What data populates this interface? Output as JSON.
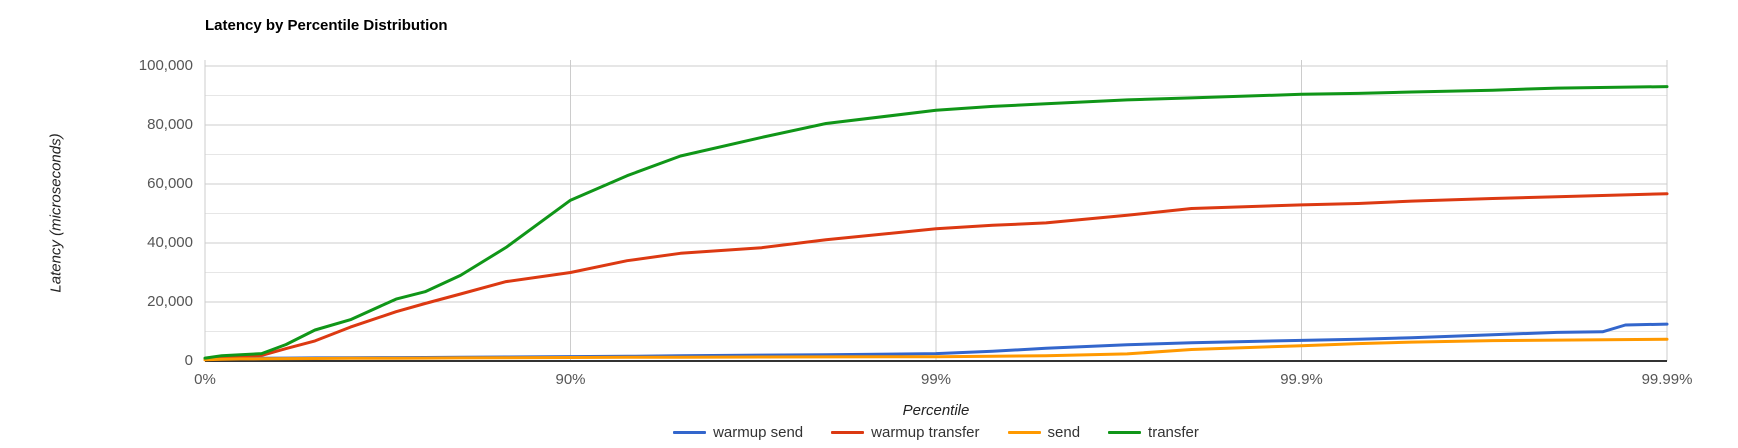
{
  "chart": {
    "title": "Latency by Percentile Distribution",
    "x_axis": {
      "title": "Percentile",
      "tick_labels": [
        "0%",
        "90%",
        "99%",
        "99.9%",
        "99.99%"
      ]
    },
    "y_axis": {
      "title": "Latency (microseconds)",
      "tick_labels": [
        "0",
        "20,000",
        "40,000",
        "60,000",
        "80,000",
        "100,000"
      ],
      "tick_values": [
        0,
        20000,
        40000,
        60000,
        80000,
        100000
      ],
      "max": 100000,
      "minor_gridline_step": 10000
    },
    "colors": {
      "major_gridline": "#cccccc",
      "minor_gridline": "#e6e6e6",
      "baseline": "#333333",
      "title_text": "#000000",
      "tick_text": "#555555",
      "axis_title_text": "#222222",
      "legend_text": "#333333"
    }
  },
  "chart_data": {
    "type": "line",
    "title": "Latency by Percentile Distribution",
    "xlabel": "Percentile",
    "ylabel": "Latency (microseconds)",
    "x_scale": "log-percentile: each quarter of the axis is one nine (0%, 90%, 99%, 99.9%, 99.99%)",
    "x_ticks": [
      "0%",
      "90%",
      "99%",
      "99.9%",
      "99.99%"
    ],
    "ylim": [
      0,
      100000
    ],
    "grid": true,
    "legend_position": "bottom",
    "series": [
      {
        "name": "warmup send",
        "color": "#3366CC",
        "points_percentile_microseconds": [
          [
            0,
            500
          ],
          [
            10,
            800
          ],
          [
            20,
            900
          ],
          [
            30,
            950
          ],
          [
            40,
            1000
          ],
          [
            50,
            1050
          ],
          [
            60,
            1100
          ],
          [
            70,
            1150
          ],
          [
            75,
            1200
          ],
          [
            80,
            1250
          ],
          [
            85,
            1350
          ],
          [
            90,
            1500
          ],
          [
            93,
            1600
          ],
          [
            95,
            1800
          ],
          [
            97,
            2000
          ],
          [
            98,
            2100
          ],
          [
            99,
            2500
          ],
          [
            99.3,
            3300
          ],
          [
            99.5,
            4300
          ],
          [
            99.7,
            5500
          ],
          [
            99.8,
            6200
          ],
          [
            99.9,
            7000
          ],
          [
            99.93,
            7400
          ],
          [
            99.95,
            7900
          ],
          [
            99.97,
            8900
          ],
          [
            99.98,
            9700
          ],
          [
            99.985,
            9900
          ],
          [
            99.987,
            12200
          ],
          [
            99.99,
            12500
          ]
        ]
      },
      {
        "name": "warmup transfer",
        "color": "#DC3912",
        "points_percentile_microseconds": [
          [
            0,
            800
          ],
          [
            10,
            1300
          ],
          [
            20,
            1600
          ],
          [
            30,
            1900
          ],
          [
            40,
            4200
          ],
          [
            50,
            6800
          ],
          [
            60,
            11500
          ],
          [
            70,
            16700
          ],
          [
            75,
            19500
          ],
          [
            80,
            22700
          ],
          [
            85,
            26900
          ],
          [
            90,
            30000
          ],
          [
            93,
            34000
          ],
          [
            95,
            36500
          ],
          [
            97,
            38400
          ],
          [
            98,
            41100
          ],
          [
            99,
            44800
          ],
          [
            99.3,
            46000
          ],
          [
            99.5,
            46800
          ],
          [
            99.7,
            49400
          ],
          [
            99.8,
            51700
          ],
          [
            99.9,
            52900
          ],
          [
            99.93,
            53400
          ],
          [
            99.95,
            54200
          ],
          [
            99.97,
            55100
          ],
          [
            99.98,
            55700
          ],
          [
            99.99,
            56700
          ]
        ]
      },
      {
        "name": "send",
        "color": "#FF9900",
        "points_percentile_microseconds": [
          [
            0,
            400
          ],
          [
            10,
            600
          ],
          [
            20,
            700
          ],
          [
            30,
            750
          ],
          [
            40,
            800
          ],
          [
            50,
            850
          ],
          [
            60,
            900
          ],
          [
            70,
            950
          ],
          [
            75,
            1000
          ],
          [
            80,
            1050
          ],
          [
            85,
            1100
          ],
          [
            90,
            1200
          ],
          [
            93,
            1250
          ],
          [
            95,
            1300
          ],
          [
            97,
            1350
          ],
          [
            98,
            1400
          ],
          [
            99,
            1450
          ],
          [
            99.3,
            1600
          ],
          [
            99.5,
            1800
          ],
          [
            99.7,
            2400
          ],
          [
            99.8,
            3900
          ],
          [
            99.9,
            5200
          ],
          [
            99.93,
            5900
          ],
          [
            99.95,
            6400
          ],
          [
            99.97,
            6900
          ],
          [
            99.98,
            7100
          ],
          [
            99.99,
            7400
          ]
        ]
      },
      {
        "name": "transfer",
        "color": "#109618",
        "points_percentile_microseconds": [
          [
            0,
            1000
          ],
          [
            10,
            1800
          ],
          [
            20,
            2100
          ],
          [
            30,
            2500
          ],
          [
            40,
            5600
          ],
          [
            50,
            10500
          ],
          [
            60,
            14000
          ],
          [
            70,
            21000
          ],
          [
            75,
            23500
          ],
          [
            80,
            29000
          ],
          [
            85,
            38500
          ],
          [
            90,
            54500
          ],
          [
            93,
            62800
          ],
          [
            95,
            69500
          ],
          [
            97,
            75800
          ],
          [
            98,
            80500
          ],
          [
            99,
            85000
          ],
          [
            99.3,
            86300
          ],
          [
            99.5,
            87200
          ],
          [
            99.7,
            88500
          ],
          [
            99.8,
            89200
          ],
          [
            99.9,
            90400
          ],
          [
            99.93,
            90700
          ],
          [
            99.95,
            91200
          ],
          [
            99.97,
            91800
          ],
          [
            99.98,
            92500
          ],
          [
            99.99,
            93000
          ]
        ]
      }
    ]
  }
}
